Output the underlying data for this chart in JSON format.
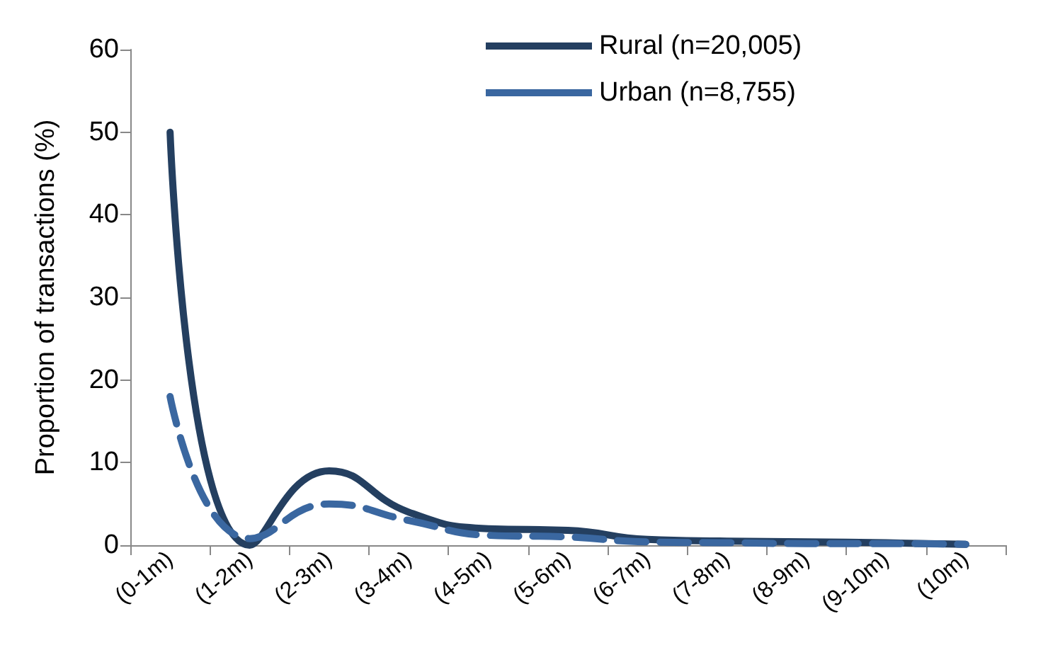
{
  "chart_data": {
    "type": "line",
    "ylabel": "Proportion of transactions (%)",
    "categories": [
      "(0-1m)",
      "(1-2m)",
      "(2-3m)",
      "(3-4m)",
      "(4-5m)",
      "(5-6m)",
      "(6-7m)",
      "(7-8m)",
      "(8-9m)",
      "(9-10m)",
      "(10m)"
    ],
    "series": [
      {
        "name": "Rural (n=20,005)",
        "color": "#243f60",
        "line_style": "solid",
        "values": [
          50,
          0,
          9,
          4,
          2,
          1.8,
          0.7,
          0.5,
          0.4,
          0.3,
          0.1
        ]
      },
      {
        "name": "Urban (n=8,755)",
        "color": "#3a67a0",
        "line_style": "dashed",
        "values": [
          18,
          0.8,
          5,
          3,
          1.2,
          1,
          0.4,
          0.3,
          0.2,
          0.2,
          0.1
        ]
      }
    ],
    "ylim": [
      0,
      60
    ],
    "yticks": [
      0,
      10,
      20,
      30,
      40,
      50,
      60
    ],
    "grid": false,
    "legend": "top",
    "marker": "none"
  }
}
